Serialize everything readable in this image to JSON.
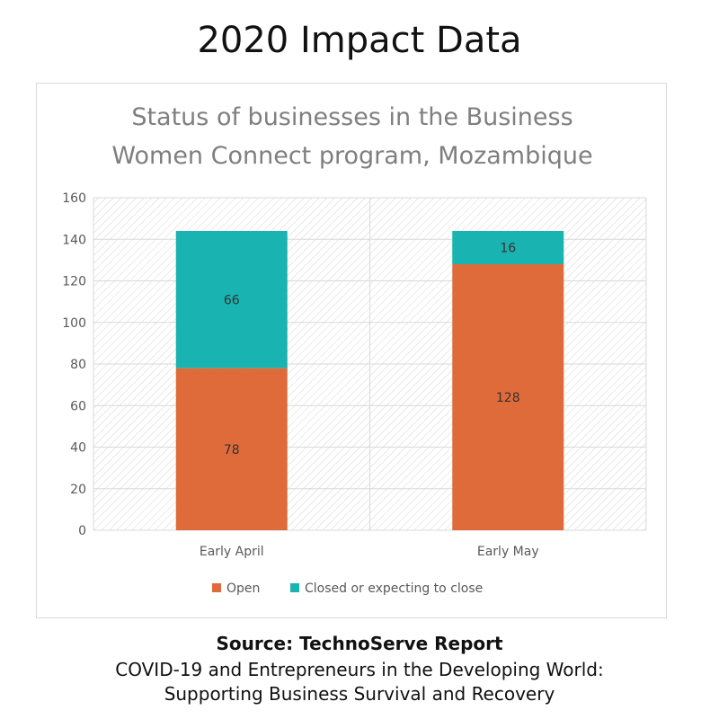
{
  "header": {
    "title": "2020 Impact Data"
  },
  "footer": {
    "source": "Source: TechnoServe Report",
    "report_line1": "COVID-19 and Entrepreneurs in the Developing World:",
    "report_line2": "Supporting Business Survival and Recovery"
  },
  "colors": {
    "open": "#e06b3a",
    "closed": "#19b3b1"
  },
  "chart_data": {
    "type": "bar",
    "stacked": true,
    "title_lines": [
      "Status of businesses in the Business",
      "Women Connect program, Mozambique"
    ],
    "categories": [
      "Early April",
      "Early May"
    ],
    "series": [
      {
        "name": "Open",
        "values": [
          78,
          128
        ]
      },
      {
        "name": "Closed or expecting to close",
        "values": [
          66,
          16
        ]
      }
    ],
    "ylim": [
      0,
      160
    ],
    "yticks": [
      0,
      20,
      40,
      60,
      80,
      100,
      120,
      140,
      160
    ],
    "grid": true,
    "legend": "bottom"
  }
}
